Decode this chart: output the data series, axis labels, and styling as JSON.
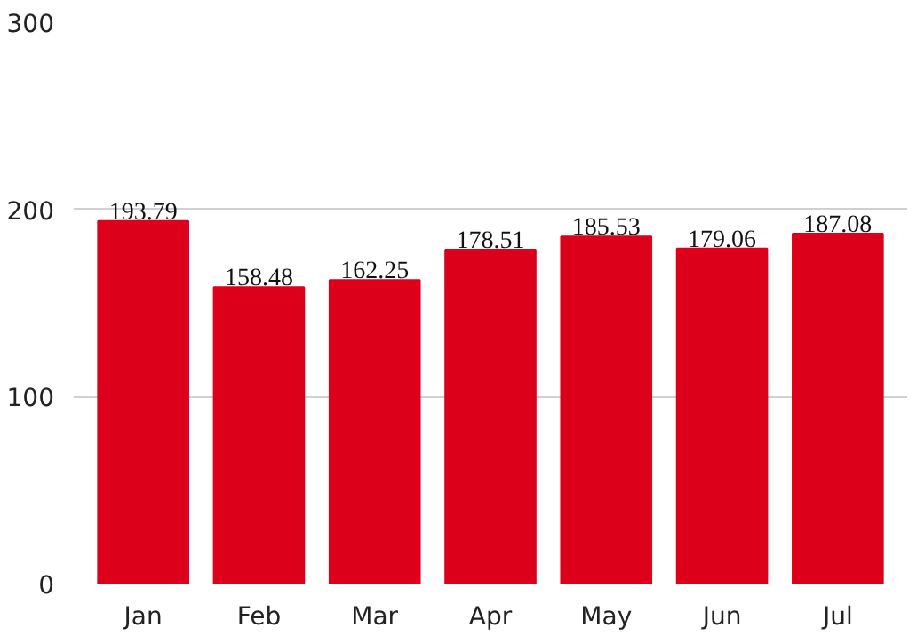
{
  "chart_data": {
    "type": "bar",
    "categories": [
      "Jan",
      "Feb",
      "Mar",
      "Apr",
      "May",
      "Jun",
      "Jul"
    ],
    "values": [
      193.79,
      158.48,
      162.25,
      178.51,
      185.53,
      179.06,
      187.08
    ],
    "color": "#dc001a",
    "ylim": [
      0,
      300
    ],
    "yticks": [
      0,
      100,
      200,
      300
    ],
    "grid": "y",
    "data_labels": true
  }
}
